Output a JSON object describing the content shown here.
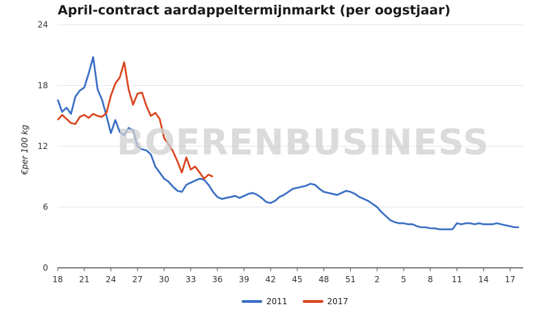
{
  "watermark": "BOERENBUSINESS",
  "chart_data": {
    "type": "line",
    "title": "April-contract aardappeltermijnmarkt (per oogstjaar)",
    "xlabel": "",
    "ylabel": "€per 100 kg",
    "ylim": [
      0,
      24
    ],
    "yticks": [
      "0",
      "6",
      "12",
      "18",
      "24"
    ],
    "x_week_index_range": [
      0,
      52
    ],
    "xticks": [
      {
        "i": 0,
        "label": "18"
      },
      {
        "i": 3,
        "label": "21"
      },
      {
        "i": 6,
        "label": "24"
      },
      {
        "i": 9,
        "label": "27"
      },
      {
        "i": 12,
        "label": "30"
      },
      {
        "i": 15,
        "label": "33"
      },
      {
        "i": 18,
        "label": "36"
      },
      {
        "i": 21,
        "label": "39"
      },
      {
        "i": 24,
        "label": "42"
      },
      {
        "i": 27,
        "label": "45"
      },
      {
        "i": 30,
        "label": "48"
      },
      {
        "i": 33,
        "label": "51"
      },
      {
        "i": 36,
        "label": "2"
      },
      {
        "i": 39,
        "label": "5"
      },
      {
        "i": 42,
        "label": "8"
      },
      {
        "i": 45,
        "label": "11"
      },
      {
        "i": 48,
        "label": "14"
      },
      {
        "i": 51,
        "label": "17"
      }
    ],
    "grid": true,
    "legend_position": "bottom",
    "series": [
      {
        "name": "2011",
        "color": "#3a6fc4",
        "points": [
          [
            0,
            16.6
          ],
          [
            0.5,
            15.4
          ],
          [
            1,
            15.8
          ],
          [
            1.5,
            15.2
          ],
          [
            2,
            16.9
          ],
          [
            2.5,
            17.5
          ],
          [
            3,
            17.8
          ],
          [
            3.5,
            19.2
          ],
          [
            4,
            20.8
          ],
          [
            4.5,
            17.6
          ],
          [
            5,
            16.6
          ],
          [
            5.5,
            15.0
          ],
          [
            6,
            13.3
          ],
          [
            6.5,
            14.6
          ],
          [
            7,
            13.4
          ],
          [
            7.5,
            13.1
          ],
          [
            8,
            13.8
          ],
          [
            8.5,
            13.6
          ],
          [
            9,
            12.0
          ],
          [
            9.5,
            11.7
          ],
          [
            10,
            11.6
          ],
          [
            10.5,
            11.2
          ],
          [
            11,
            10.0
          ],
          [
            11.5,
            9.4
          ],
          [
            12,
            8.8
          ],
          [
            12.5,
            8.5
          ],
          [
            13,
            8.0
          ],
          [
            13.5,
            7.6
          ],
          [
            14,
            7.5
          ],
          [
            14.5,
            8.2
          ],
          [
            15,
            8.4
          ],
          [
            15.5,
            8.6
          ],
          [
            16,
            8.8
          ],
          [
            16.5,
            8.7
          ],
          [
            17,
            8.2
          ],
          [
            17.5,
            7.5
          ],
          [
            18,
            7.0
          ],
          [
            18.5,
            6.8
          ],
          [
            19,
            6.9
          ],
          [
            19.5,
            7.0
          ],
          [
            20,
            7.1
          ],
          [
            20.5,
            6.9
          ],
          [
            21,
            7.1
          ],
          [
            21.5,
            7.3
          ],
          [
            22,
            7.4
          ],
          [
            22.5,
            7.2
          ],
          [
            23,
            6.9
          ],
          [
            23.5,
            6.5
          ],
          [
            24,
            6.4
          ],
          [
            24.5,
            6.6
          ],
          [
            25,
            7.0
          ],
          [
            25.5,
            7.2
          ],
          [
            26,
            7.5
          ],
          [
            26.5,
            7.8
          ],
          [
            27,
            7.9
          ],
          [
            27.5,
            8.0
          ],
          [
            28,
            8.1
          ],
          [
            28.5,
            8.3
          ],
          [
            29,
            8.2
          ],
          [
            29.5,
            7.8
          ],
          [
            30,
            7.5
          ],
          [
            30.5,
            7.4
          ],
          [
            31,
            7.3
          ],
          [
            31.5,
            7.2
          ],
          [
            32,
            7.4
          ],
          [
            32.5,
            7.6
          ],
          [
            33,
            7.5
          ],
          [
            33.5,
            7.3
          ],
          [
            34,
            7.0
          ],
          [
            34.5,
            6.8
          ],
          [
            35,
            6.6
          ],
          [
            35.5,
            6.3
          ],
          [
            36,
            6.0
          ],
          [
            36.5,
            5.5
          ],
          [
            37,
            5.1
          ],
          [
            37.5,
            4.7
          ],
          [
            38,
            4.5
          ],
          [
            38.5,
            4.4
          ],
          [
            39,
            4.4
          ],
          [
            39.5,
            4.3
          ],
          [
            40,
            4.3
          ],
          [
            40.5,
            4.1
          ],
          [
            41,
            4.0
          ],
          [
            41.5,
            4.0
          ],
          [
            42,
            3.9
          ],
          [
            42.5,
            3.9
          ],
          [
            43,
            3.8
          ],
          [
            43.5,
            3.8
          ],
          [
            44,
            3.8
          ],
          [
            44.5,
            3.8
          ],
          [
            45,
            4.4
          ],
          [
            45.5,
            4.3
          ],
          [
            46,
            4.4
          ],
          [
            46.5,
            4.4
          ],
          [
            47,
            4.3
          ],
          [
            47.5,
            4.4
          ],
          [
            48,
            4.3
          ],
          [
            48.5,
            4.3
          ],
          [
            49,
            4.3
          ],
          [
            49.5,
            4.4
          ],
          [
            50,
            4.3
          ],
          [
            50.5,
            4.2
          ],
          [
            51,
            4.1
          ],
          [
            51.5,
            4.0
          ],
          [
            52,
            4.0
          ]
        ]
      },
      {
        "name": "2017",
        "color": "#d9461f",
        "points": [
          [
            0,
            14.6
          ],
          [
            0.5,
            15.1
          ],
          [
            1,
            14.7
          ],
          [
            1.5,
            14.3
          ],
          [
            2,
            14.2
          ],
          [
            2.5,
            14.9
          ],
          [
            3,
            15.1
          ],
          [
            3.5,
            14.8
          ],
          [
            4,
            15.2
          ],
          [
            4.5,
            15.0
          ],
          [
            5,
            14.9
          ],
          [
            5.5,
            15.3
          ],
          [
            6,
            17.0
          ],
          [
            6.5,
            18.2
          ],
          [
            7,
            18.8
          ],
          [
            7.5,
            20.3
          ],
          [
            8,
            17.6
          ],
          [
            8.5,
            16.1
          ],
          [
            9,
            17.2
          ],
          [
            9.5,
            17.3
          ],
          [
            10,
            16.0
          ],
          [
            10.5,
            15.0
          ],
          [
            11,
            15.3
          ],
          [
            11.5,
            14.7
          ],
          [
            12,
            12.8
          ],
          [
            12.5,
            12.2
          ],
          [
            13,
            11.5
          ],
          [
            13.5,
            10.5
          ],
          [
            14,
            9.4
          ],
          [
            14.5,
            10.9
          ],
          [
            15,
            9.7
          ],
          [
            15.5,
            10.0
          ],
          [
            16,
            9.4
          ],
          [
            16.5,
            8.8
          ],
          [
            17,
            9.2
          ],
          [
            17.5,
            9.0
          ]
        ]
      }
    ]
  }
}
